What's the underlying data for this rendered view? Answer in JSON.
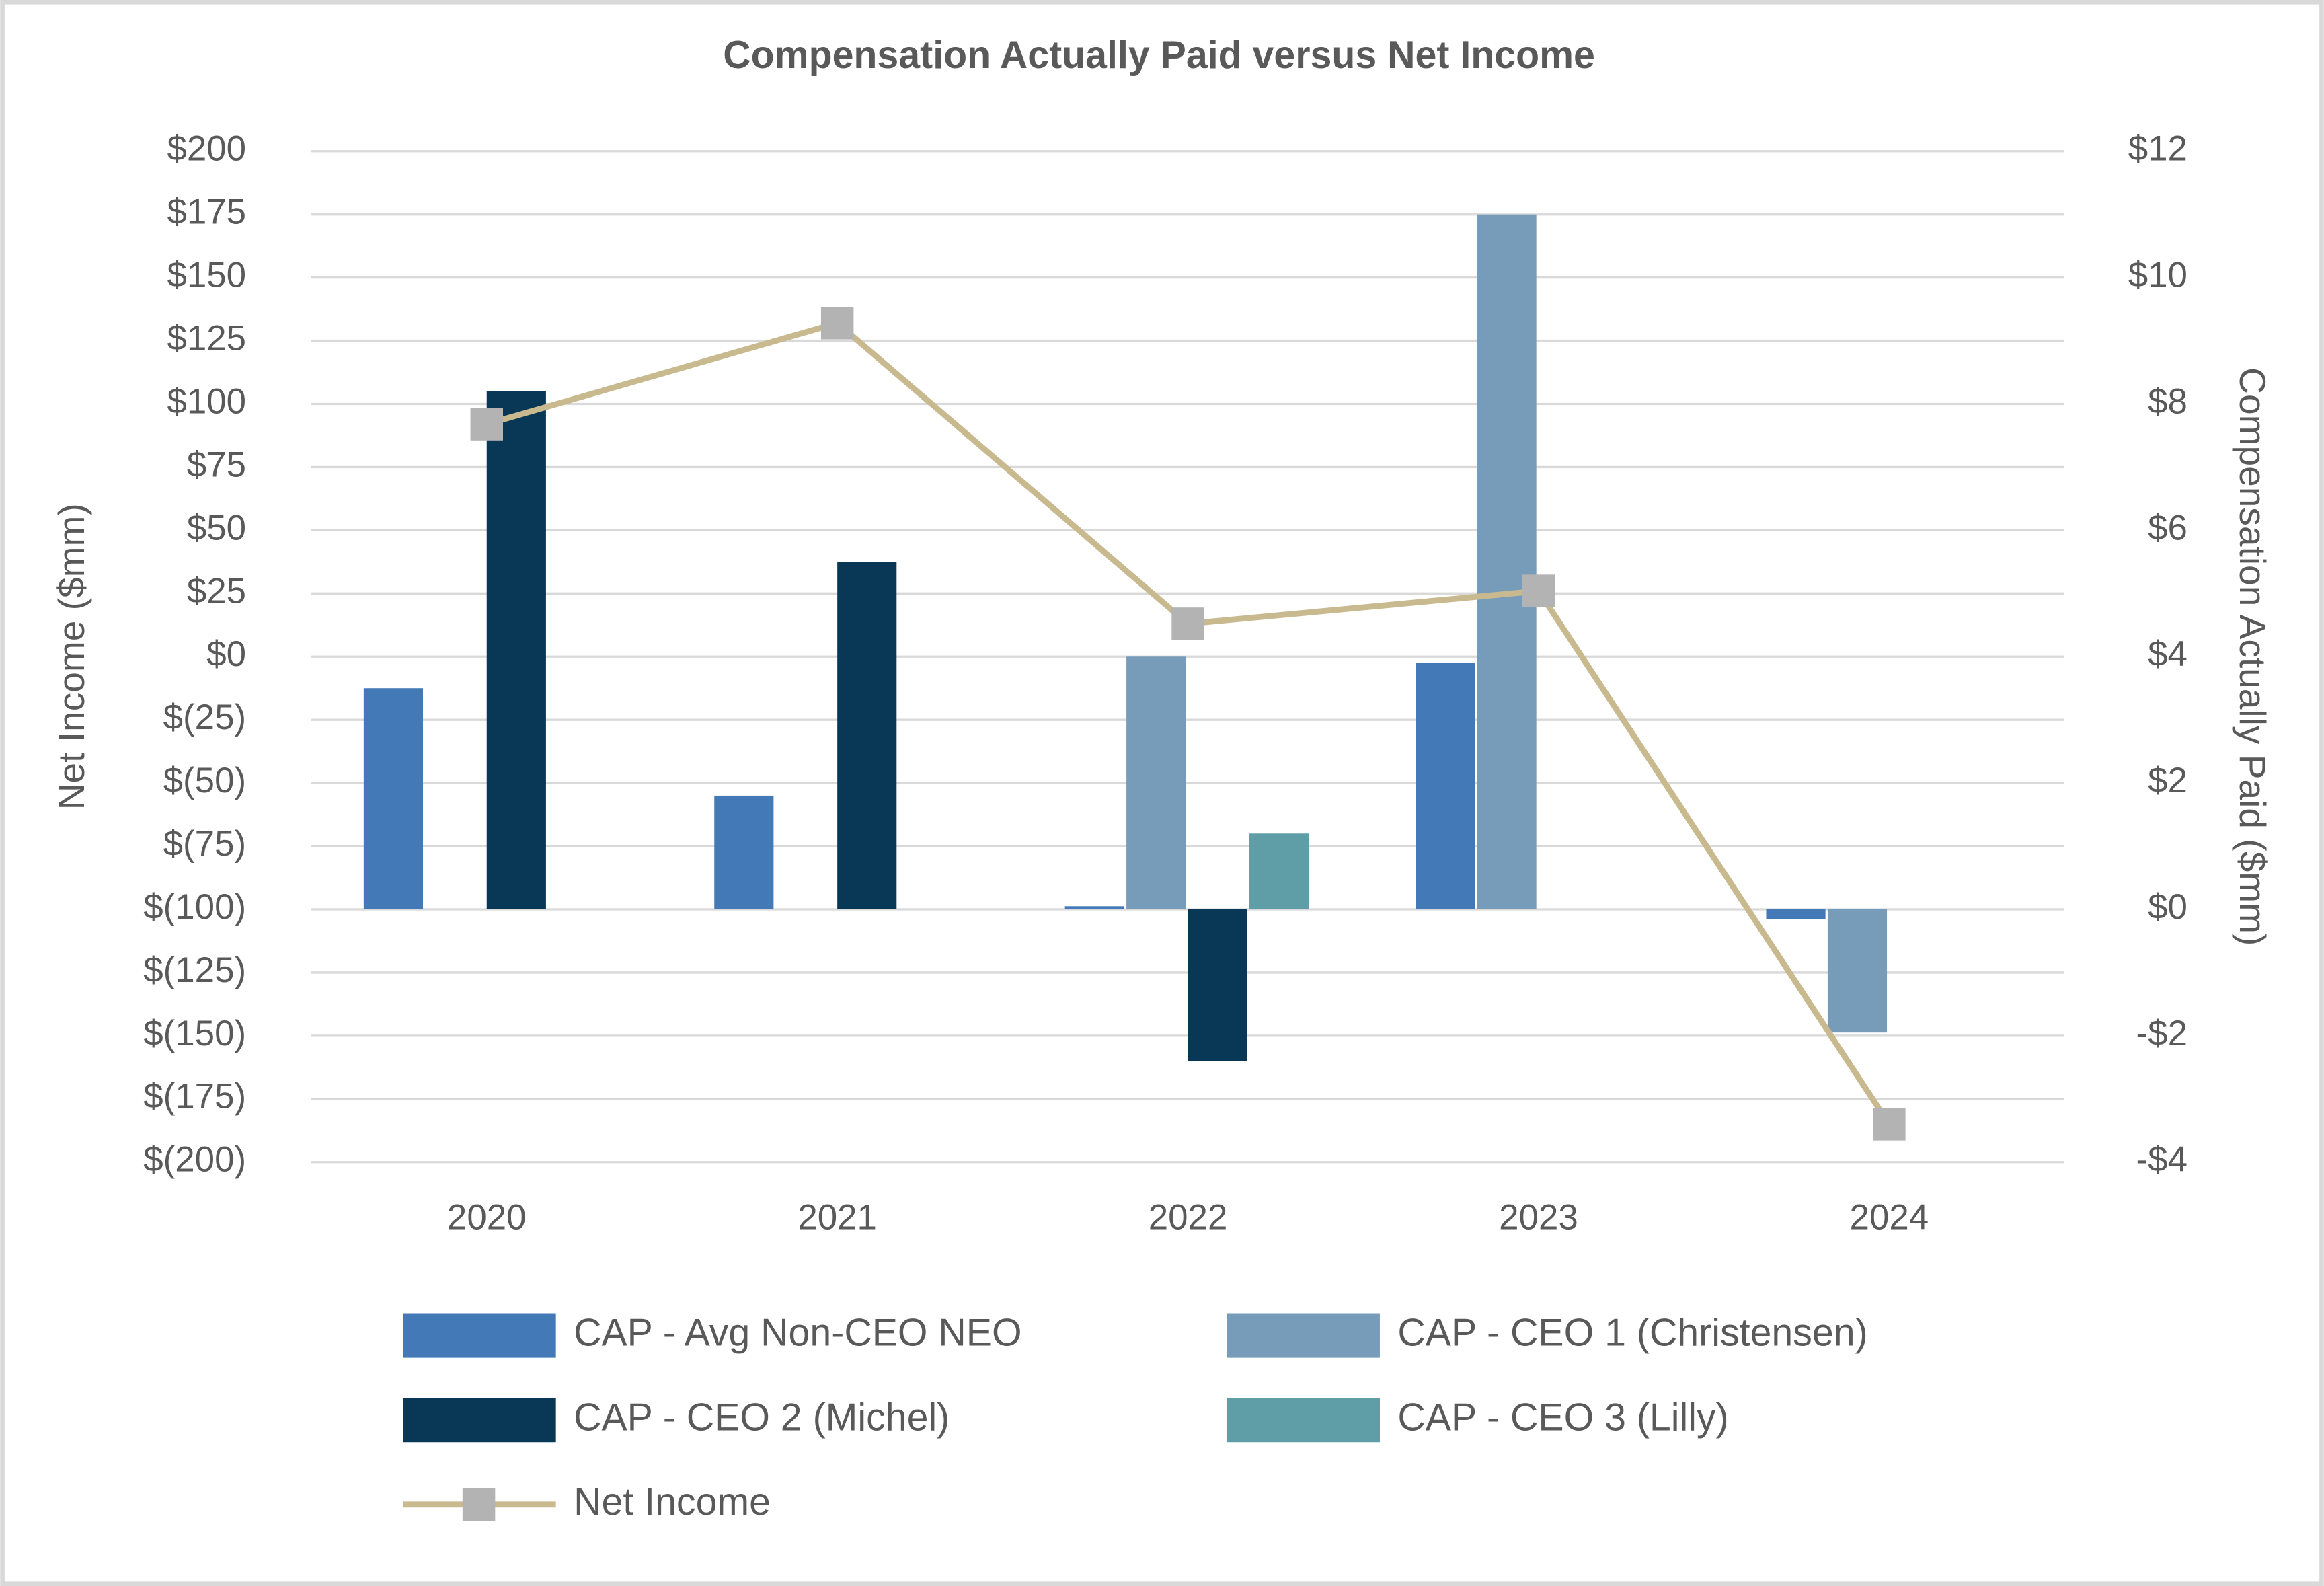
{
  "chart_data": {
    "type": "bar",
    "title": "Compensation Actually Paid versus Net Income",
    "y_label": "Net Income ($mm)",
    "y2_label": "Compensation Actually Paid ($mm)",
    "categories": [
      "2020",
      "2021",
      "2022",
      "2023",
      "2024"
    ],
    "series": [
      {
        "name": "CAP - Avg Non-CEO NEO",
        "color": "#4279b6",
        "axis": "y2",
        "values": [
          3.5,
          1.8,
          0.05,
          3.9,
          -0.15
        ]
      },
      {
        "name": "CAP - CEO 1 (Christensen)",
        "color": "#769cba",
        "axis": "y2",
        "values": [
          null,
          null,
          4.0,
          11.0,
          -1.95
        ]
      },
      {
        "name": "CAP - CEO 2 (Michel)",
        "color": "#083856",
        "axis": "y2",
        "values": [
          8.2,
          5.5,
          -2.4,
          null,
          null
        ]
      },
      {
        "name": "CAP - CEO 3 (Lilly)",
        "color": "#5f9ea7",
        "axis": "y2",
        "values": [
          null,
          null,
          1.2,
          null,
          null
        ]
      },
      {
        "name": "Net Income",
        "type": "line",
        "color": "#c8b98f",
        "marker_color": "#b3b3b3",
        "axis": "y",
        "values": [
          92,
          132,
          13,
          26,
          -185
        ]
      }
    ],
    "ylim": [
      -200,
      200
    ],
    "yticks": [
      {
        "value": -200,
        "label": "$(200)"
      },
      {
        "value": -175,
        "label": "$(175)"
      },
      {
        "value": -150,
        "label": "$(150)"
      },
      {
        "value": -125,
        "label": "$(125)"
      },
      {
        "value": -100,
        "label": "$(100)"
      },
      {
        "value": -75,
        "label": "$(75)"
      },
      {
        "value": -50,
        "label": "$(50)"
      },
      {
        "value": -25,
        "label": "$(25)"
      },
      {
        "value": 0,
        "label": "$0"
      },
      {
        "value": 25,
        "label": "$25"
      },
      {
        "value": 50,
        "label": "$50"
      },
      {
        "value": 75,
        "label": "$75"
      },
      {
        "value": 100,
        "label": "$100"
      },
      {
        "value": 125,
        "label": "$125"
      },
      {
        "value": 150,
        "label": "$150"
      },
      {
        "value": 175,
        "label": "$175"
      },
      {
        "value": 200,
        "label": "$200"
      }
    ],
    "y2lim": [
      -4,
      12
    ],
    "y2ticks": [
      {
        "value": -4,
        "label": "-$4"
      },
      {
        "value": -2,
        "label": "-$2"
      },
      {
        "value": 0,
        "label": "$0"
      },
      {
        "value": 2,
        "label": "$2"
      },
      {
        "value": 4,
        "label": "$4"
      },
      {
        "value": 6,
        "label": "$6"
      },
      {
        "value": 8,
        "label": "$8"
      },
      {
        "value": 10,
        "label": "$10"
      },
      {
        "value": 12,
        "label": "$12"
      }
    ],
    "grid": true,
    "legend": "bottom"
  }
}
